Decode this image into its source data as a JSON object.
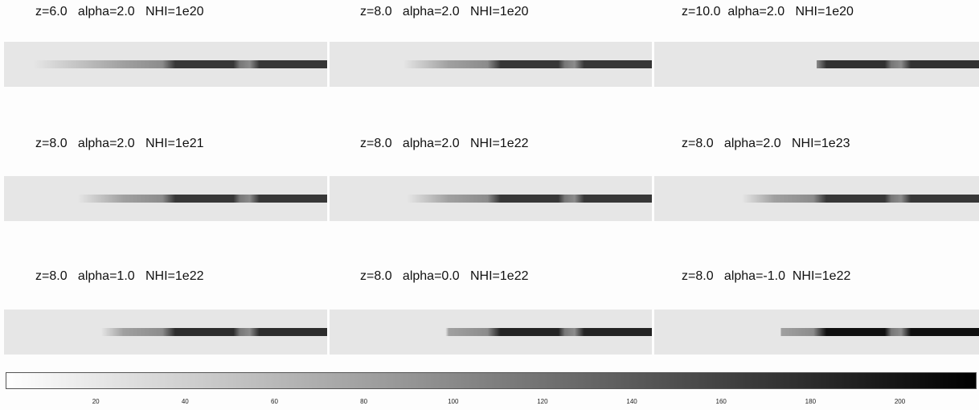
{
  "chart_data": {
    "type": "heatmap",
    "colormap": "gray_r",
    "panels": [
      {
        "title": "z=6.0   alpha=2.0   NHI=1e20",
        "z": 6.0,
        "alpha": 2.0,
        "NHI": "1e20",
        "level": 175,
        "fade": 0.55
      },
      {
        "title": "z=8.0   alpha=2.0   NHI=1e20",
        "z": 8.0,
        "alpha": 2.0,
        "NHI": "1e20",
        "level": 175,
        "fade": 0.32
      },
      {
        "title": "z=10.0  alpha=2.0   NHI=1e20",
        "z": 10.0,
        "alpha": 2.0,
        "NHI": "1e20",
        "level": 180,
        "fade": 0.0
      },
      {
        "title": "z=8.0   alpha=2.0   NHI=1e21",
        "z": 8.0,
        "alpha": 2.0,
        "NHI": "1e21",
        "level": 175,
        "fade": 0.32
      },
      {
        "title": "z=8.0   alpha=2.0   NHI=1e22",
        "z": 8.0,
        "alpha": 2.0,
        "NHI": "1e22",
        "level": 175,
        "fade": 0.3
      },
      {
        "title": "z=8.0   alpha=2.0   NHI=1e23",
        "z": 8.0,
        "alpha": 2.0,
        "NHI": "1e23",
        "level": 175,
        "fade": 0.25
      },
      {
        "title": "z=8.0   alpha=1.0   NHI=1e22",
        "z": 8.0,
        "alpha": 1.0,
        "NHI": "1e22",
        "level": 185,
        "fade": 0.2
      },
      {
        "title": "z=8.0   alpha=0.0   NHI=1e22",
        "z": 8.0,
        "alpha": 0.0,
        "NHI": "1e22",
        "level": 195,
        "fade": 0.1
      },
      {
        "title": "z=8.0   alpha=-1.0  NHI=1e22",
        "z": 8.0,
        "alpha": -1.0,
        "NHI": "1e22",
        "level": 215,
        "fade": 0.05
      }
    ],
    "colorbar": {
      "ticks": [
        "20",
        "40",
        "60",
        "80",
        "100",
        "120",
        "140",
        "160",
        "180",
        "200"
      ],
      "range": [
        0,
        217
      ]
    }
  }
}
